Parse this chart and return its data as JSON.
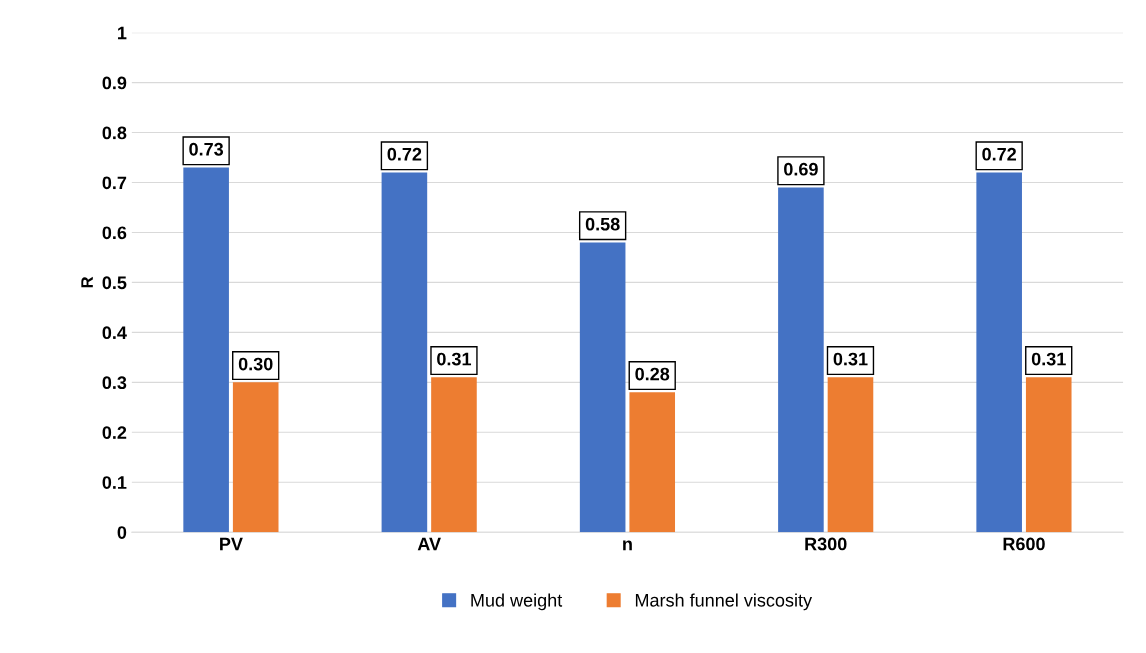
{
  "chart_data": {
    "type": "bar",
    "ylabel": "R",
    "categories": [
      "PV",
      "AV",
      "n",
      "R300",
      "R600"
    ],
    "series": [
      {
        "name": "Mud weight",
        "color": "#4472c4",
        "values": [
          0.73,
          0.72,
          0.58,
          0.69,
          0.72
        ],
        "value_labels": [
          "0.73",
          "0.72",
          "0.58",
          "0.69",
          "0.72"
        ]
      },
      {
        "name": "Marsh funnel viscosity",
        "color": "#ed7d31",
        "values": [
          0.3,
          0.31,
          0.28,
          0.31,
          0.31
        ],
        "value_labels": [
          "0.30",
          "0.31",
          "0.28",
          "0.31",
          "0.31"
        ]
      }
    ],
    "ylim": [
      0,
      1
    ],
    "yticks": [
      0,
      0.1,
      0.2,
      0.3,
      0.4,
      0.5,
      0.6,
      0.7,
      0.8,
      0.9,
      1
    ],
    "grid": "y",
    "legend": "bottom"
  }
}
